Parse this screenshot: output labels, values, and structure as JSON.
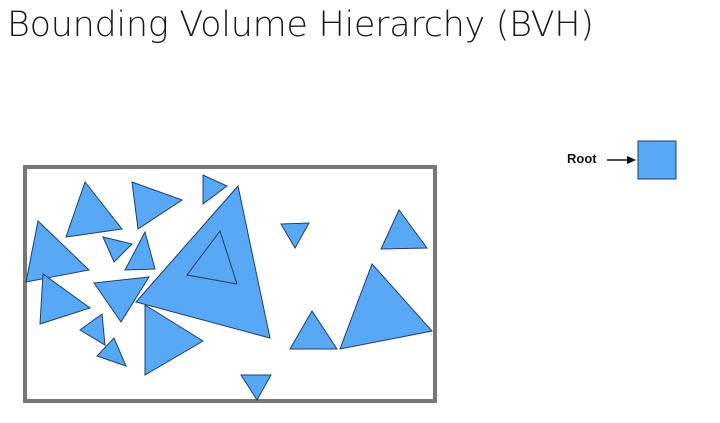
{
  "title": "Bounding Volume Hierarchy (BVH)",
  "root": {
    "label": "Root"
  },
  "colors": {
    "triangle_fill": "#58a8f5",
    "triangle_stroke": "#1f3f66",
    "bounding_box_stroke": "#777777",
    "root_node_fill": "#58a8f5"
  }
}
